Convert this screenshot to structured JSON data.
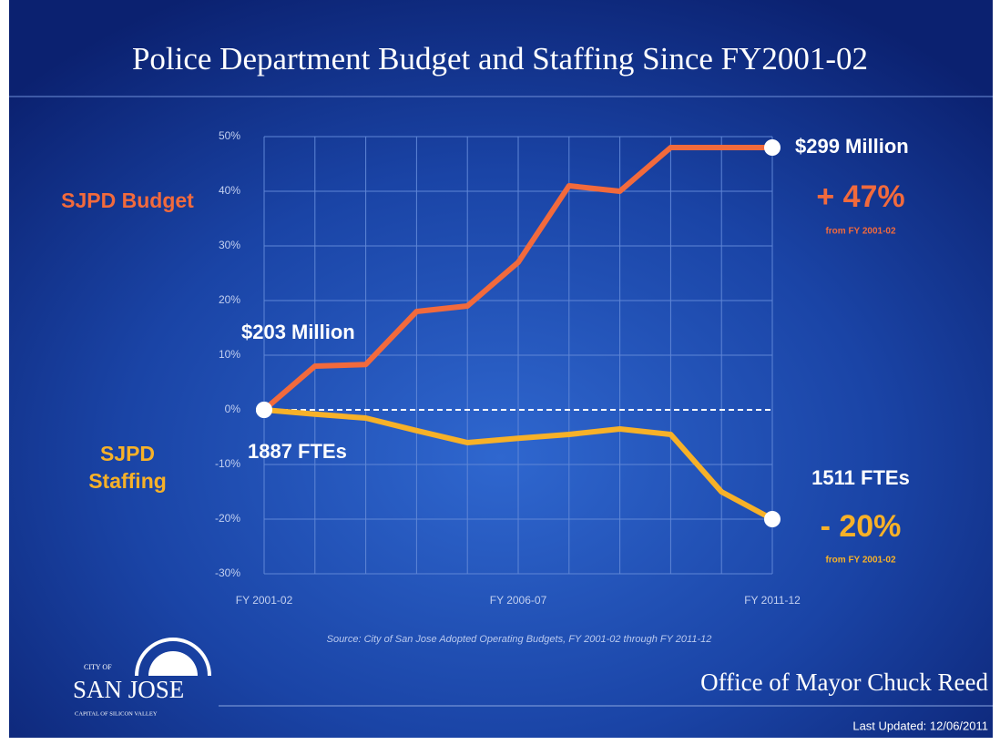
{
  "chart_data": {
    "type": "line",
    "title": "Police Department Budget and Staffing Since FY2001-02",
    "categories": [
      "FY 2001-02",
      null,
      null,
      null,
      null,
      "FY 2006-07",
      null,
      null,
      null,
      null,
      "FY 2011-12"
    ],
    "series": [
      {
        "name": "SJPD Budget",
        "color": "#f26a3c",
        "values": [
          0,
          8,
          8.3,
          18,
          19,
          27,
          41,
          40,
          48,
          48,
          48
        ]
      },
      {
        "name": "SJPD Staffing",
        "color": "#f7b128",
        "values": [
          0,
          -0.8,
          -1.5,
          -3.8,
          -6,
          -5.2,
          -4.5,
          -3.5,
          -4.5,
          -15,
          -20
        ]
      }
    ],
    "ylim": [
      -30,
      50
    ],
    "yticks": [
      {
        "value": -30,
        "label": "-30%"
      },
      {
        "value": -20,
        "label": "-20%"
      },
      {
        "value": -10,
        "label": "-10%"
      },
      {
        "value": 0,
        "label": "0%"
      },
      {
        "value": 10,
        "label": "10%"
      },
      {
        "value": 20,
        "label": "20%"
      },
      {
        "value": 30,
        "label": "30%"
      },
      {
        "value": 40,
        "label": "40%"
      },
      {
        "value": 50,
        "label": "50%"
      }
    ],
    "grid": true,
    "annotations": {
      "budget_start": "$203 Million",
      "budget_end": "$299 Million",
      "budget_change": "+ 47%",
      "budget_change_note": "from FY 2001-02",
      "staffing_start": "1887 FTEs",
      "staffing_end": "1511 FTEs",
      "staffing_change": "- 20%",
      "staffing_change_note": "from FY 2001-02"
    },
    "source": "Source: City of San Jose Adopted Operating Budgets, FY 2001-02 through FY 2011-12"
  },
  "footer": {
    "office": "Office of Mayor Chuck Reed",
    "last_updated": "Last Updated:  12/06/2011"
  },
  "logo": {
    "top": "CITY OF",
    "name": "SAN JOSE",
    "tagline": "CAPITAL OF SILICON VALLEY"
  }
}
